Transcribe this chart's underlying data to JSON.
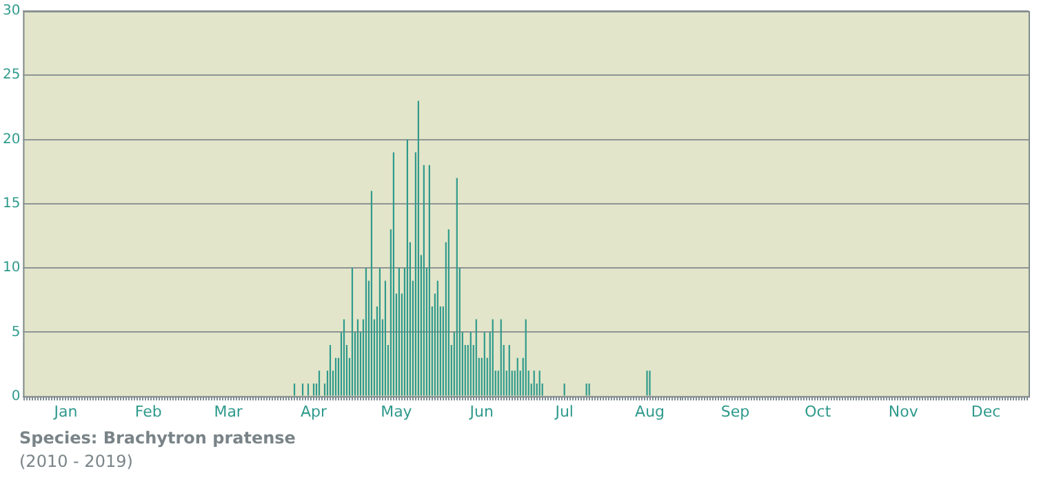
{
  "chart_data": {
    "type": "bar",
    "categories": [
      null,
      null,
      null,
      null,
      null,
      null,
      null,
      null,
      null,
      null,
      null,
      null,
      null,
      null,
      null,
      "Jan",
      null,
      null,
      null,
      null,
      null,
      null,
      null,
      null,
      null,
      null,
      null,
      null,
      null,
      null,
      null,
      null,
      null,
      null,
      null,
      null,
      null,
      null,
      null,
      null,
      null,
      null,
      null,
      null,
      null,
      "Feb",
      null,
      null,
      null,
      null,
      null,
      null,
      null,
      null,
      null,
      null,
      null,
      null,
      null,
      null,
      null,
      null,
      null,
      null,
      null,
      null,
      null,
      null,
      null,
      null,
      null,
      null,
      null,
      null,
      "Mar",
      null,
      null,
      null,
      null,
      null,
      null,
      null,
      null,
      null,
      null,
      null,
      null,
      null,
      null,
      null,
      null,
      null,
      null,
      null,
      null,
      null,
      null,
      null,
      null,
      null,
      null,
      null,
      null,
      null,
      null,
      "Apr",
      null,
      null,
      null,
      null,
      null,
      null,
      null,
      null,
      null,
      null,
      null,
      null,
      null,
      null,
      null,
      null,
      null,
      null,
      null,
      null,
      null,
      null,
      null,
      null,
      null,
      null,
      null,
      null,
      null,
      "May",
      null,
      null,
      null,
      null,
      null,
      null,
      null,
      null,
      null,
      null,
      null,
      null,
      null,
      null,
      null,
      null,
      null,
      null,
      null,
      null,
      null,
      null,
      null,
      null,
      null,
      null,
      null,
      null,
      null,
      null,
      "Jun",
      null,
      null,
      null,
      null,
      null,
      null,
      null,
      null,
      null,
      null,
      null,
      null,
      null,
      null,
      null,
      null,
      null,
      null,
      null,
      null,
      null,
      null,
      null,
      null,
      null,
      null,
      null,
      null,
      null,
      "Jul",
      null,
      null,
      null,
      null,
      null,
      null,
      null,
      null,
      null,
      null,
      null,
      null,
      null,
      null,
      null,
      null,
      null,
      null,
      null,
      null,
      null,
      null,
      null,
      null,
      null,
      null,
      null,
      null,
      null,
      null,
      "Aug",
      null,
      null,
      null,
      null,
      null,
      null,
      null,
      null,
      null,
      null,
      null,
      null,
      null,
      null,
      null,
      null,
      null,
      null,
      null,
      null,
      null,
      null,
      null,
      null,
      null,
      null,
      null,
      null,
      null,
      null,
      "Sep",
      null,
      null,
      null,
      null,
      null,
      null,
      null,
      null,
      null,
      null,
      null,
      null,
      null,
      null,
      null,
      null,
      null,
      null,
      null,
      null,
      null,
      null,
      null,
      null,
      null,
      null,
      null,
      null,
      null,
      "Oct",
      null,
      null,
      null,
      null,
      null,
      null,
      null,
      null,
      null,
      null,
      null,
      null,
      null,
      null,
      null,
      null,
      null,
      null,
      null,
      null,
      null,
      null,
      null,
      null,
      null,
      null,
      null,
      null,
      null,
      null,
      "Nov",
      null,
      null,
      null,
      null,
      null,
      null,
      null,
      null,
      null,
      null,
      null,
      null,
      null,
      null,
      null,
      null,
      null,
      null,
      null,
      null,
      null,
      null,
      null,
      null,
      null,
      null,
      null,
      null,
      null,
      "Dec",
      null,
      null,
      null,
      null,
      null,
      null,
      null,
      null,
      null,
      null,
      null,
      null,
      null,
      null,
      null
    ],
    "values": [
      0,
      0,
      0,
      0,
      0,
      0,
      0,
      0,
      0,
      0,
      0,
      0,
      0,
      0,
      0,
      0,
      0,
      0,
      0,
      0,
      0,
      0,
      0,
      0,
      0,
      0,
      0,
      0,
      0,
      0,
      0,
      0,
      0,
      0,
      0,
      0,
      0,
      0,
      0,
      0,
      0,
      0,
      0,
      0,
      0,
      0,
      0,
      0,
      0,
      0,
      0,
      0,
      0,
      0,
      0,
      0,
      0,
      0,
      0,
      0,
      0,
      0,
      0,
      0,
      0,
      0,
      0,
      0,
      0,
      0,
      0,
      0,
      0,
      0,
      0,
      0,
      0,
      0,
      0,
      0,
      0,
      0,
      0,
      0,
      0,
      0,
      0,
      0,
      0,
      0,
      0,
      0,
      0,
      0,
      0,
      0,
      0,
      0,
      1,
      0,
      0,
      1,
      0,
      1,
      0,
      1,
      1,
      2,
      0,
      1,
      2,
      4,
      2,
      3,
      3,
      5,
      6,
      4,
      3,
      10,
      5,
      6,
      5,
      6,
      10,
      9,
      16,
      6,
      7,
      10,
      6,
      9,
      4,
      13,
      19,
      8,
      10,
      8,
      10,
      20,
      12,
      9,
      19,
      23,
      11,
      18,
      10,
      18,
      7,
      8,
      9,
      7,
      7,
      12,
      13,
      4,
      5,
      17,
      10,
      5,
      4,
      4,
      5,
      4,
      6,
      3,
      3,
      5,
      3,
      5,
      6,
      2,
      2,
      6,
      4,
      2,
      4,
      2,
      2,
      3,
      2,
      3,
      6,
      2,
      1,
      2,
      1,
      2,
      1,
      0,
      0,
      0,
      0,
      0,
      0,
      0,
      1,
      0,
      0,
      0,
      0,
      0,
      0,
      0,
      1,
      1,
      0,
      0,
      0,
      0,
      0,
      0,
      0,
      0,
      0,
      0,
      0,
      0,
      0,
      0,
      0,
      0,
      0,
      0,
      0,
      0,
      2,
      2,
      0,
      0,
      0,
      0,
      0,
      0,
      0,
      0,
      0,
      0,
      0,
      0,
      0,
      0,
      0,
      0,
      0,
      0,
      0,
      0,
      0,
      0,
      0,
      0,
      0,
      0,
      0,
      0,
      0,
      0,
      0,
      0,
      0,
      0,
      0,
      0,
      0,
      0,
      0,
      0,
      0,
      0,
      0,
      0,
      0,
      0,
      0,
      0,
      0,
      0,
      0,
      0,
      0,
      0,
      0,
      0,
      0,
      0,
      0,
      0,
      0,
      0,
      0,
      0,
      0,
      0,
      0,
      0,
      0,
      0,
      0,
      0,
      0,
      0,
      0,
      0,
      0,
      0,
      0,
      0,
      0,
      0,
      0,
      0,
      0,
      0,
      0,
      0,
      0,
      0,
      0,
      0,
      0,
      0,
      0,
      0,
      0,
      0,
      0,
      0,
      0,
      0,
      0,
      0,
      0,
      0,
      0,
      0,
      0,
      0,
      0,
      0,
      0,
      0,
      0,
      0,
      0,
      0,
      0,
      0,
      0,
      0,
      0,
      0,
      0,
      0,
      0,
      0,
      0,
      0,
      0,
      0,
      0,
      0,
      0,
      0,
      0
    ],
    "color": "#2f9a8c",
    "ylim": [
      0,
      30
    ],
    "yticks": [
      0,
      5,
      10,
      15,
      20,
      25,
      30
    ],
    "grid": "y",
    "legend": false,
    "annotations": [
      "Species:  Brachytron pratense",
      "(2010 - 2019)"
    ]
  }
}
